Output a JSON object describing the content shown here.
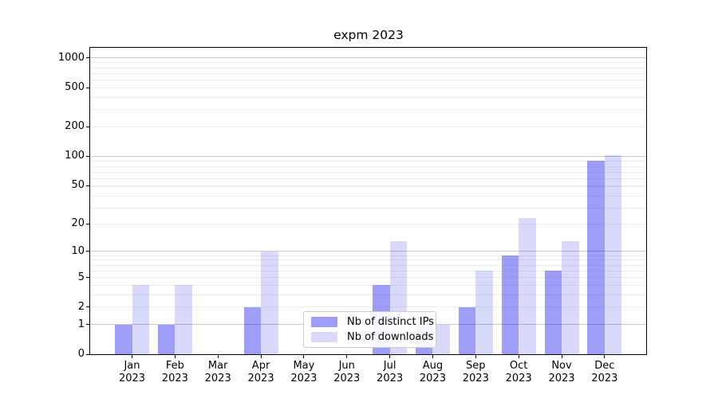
{
  "chart_data": {
    "type": "bar",
    "title": "expm 2023",
    "year": "2023",
    "months": [
      "Jan",
      "Feb",
      "Mar",
      "Apr",
      "May",
      "Jun",
      "Jul",
      "Aug",
      "Sep",
      "Oct",
      "Nov",
      "Dec"
    ],
    "categories": [
      "Jan 2023",
      "Feb 2023",
      "Mar 2023",
      "Apr 2023",
      "May 2023",
      "Jun 2023",
      "Jul 2023",
      "Aug 2023",
      "Sep 2023",
      "Oct 2023",
      "Nov 2023",
      "Dec 2023"
    ],
    "series": [
      {
        "name": "Nb of distinct IPs",
        "color": "#0000EE61",
        "solid_color": "#a2a2f7",
        "values": [
          1,
          1,
          0,
          2,
          0,
          0,
          4,
          1,
          2,
          9,
          6,
          90
        ]
      },
      {
        "name": "Nb of downloads",
        "color": "#0000EE26",
        "solid_color": "#d9d9fc",
        "values": [
          4,
          4,
          0,
          10,
          0,
          0,
          13,
          1,
          6,
          23,
          13,
          103
        ]
      }
    ],
    "y_ticks": [
      0,
      1,
      2,
      5,
      10,
      20,
      50,
      100,
      200,
      500,
      1000
    ],
    "y_scale": "log10(1+x)",
    "ylim": [
      0,
      1250
    ],
    "xlabel": "",
    "ylabel": "",
    "legend_position": "lower center",
    "grid": {
      "major": [
        1,
        10,
        100,
        1000
      ],
      "minor": [
        2,
        3,
        4,
        5,
        6,
        7,
        8,
        9,
        20,
        29,
        39,
        49,
        50,
        59,
        69,
        79,
        89,
        200,
        299,
        399,
        499,
        500,
        599,
        699,
        799,
        899
      ],
      "major_color": "#c9c9c9",
      "minor_color": "#ededed"
    }
  }
}
